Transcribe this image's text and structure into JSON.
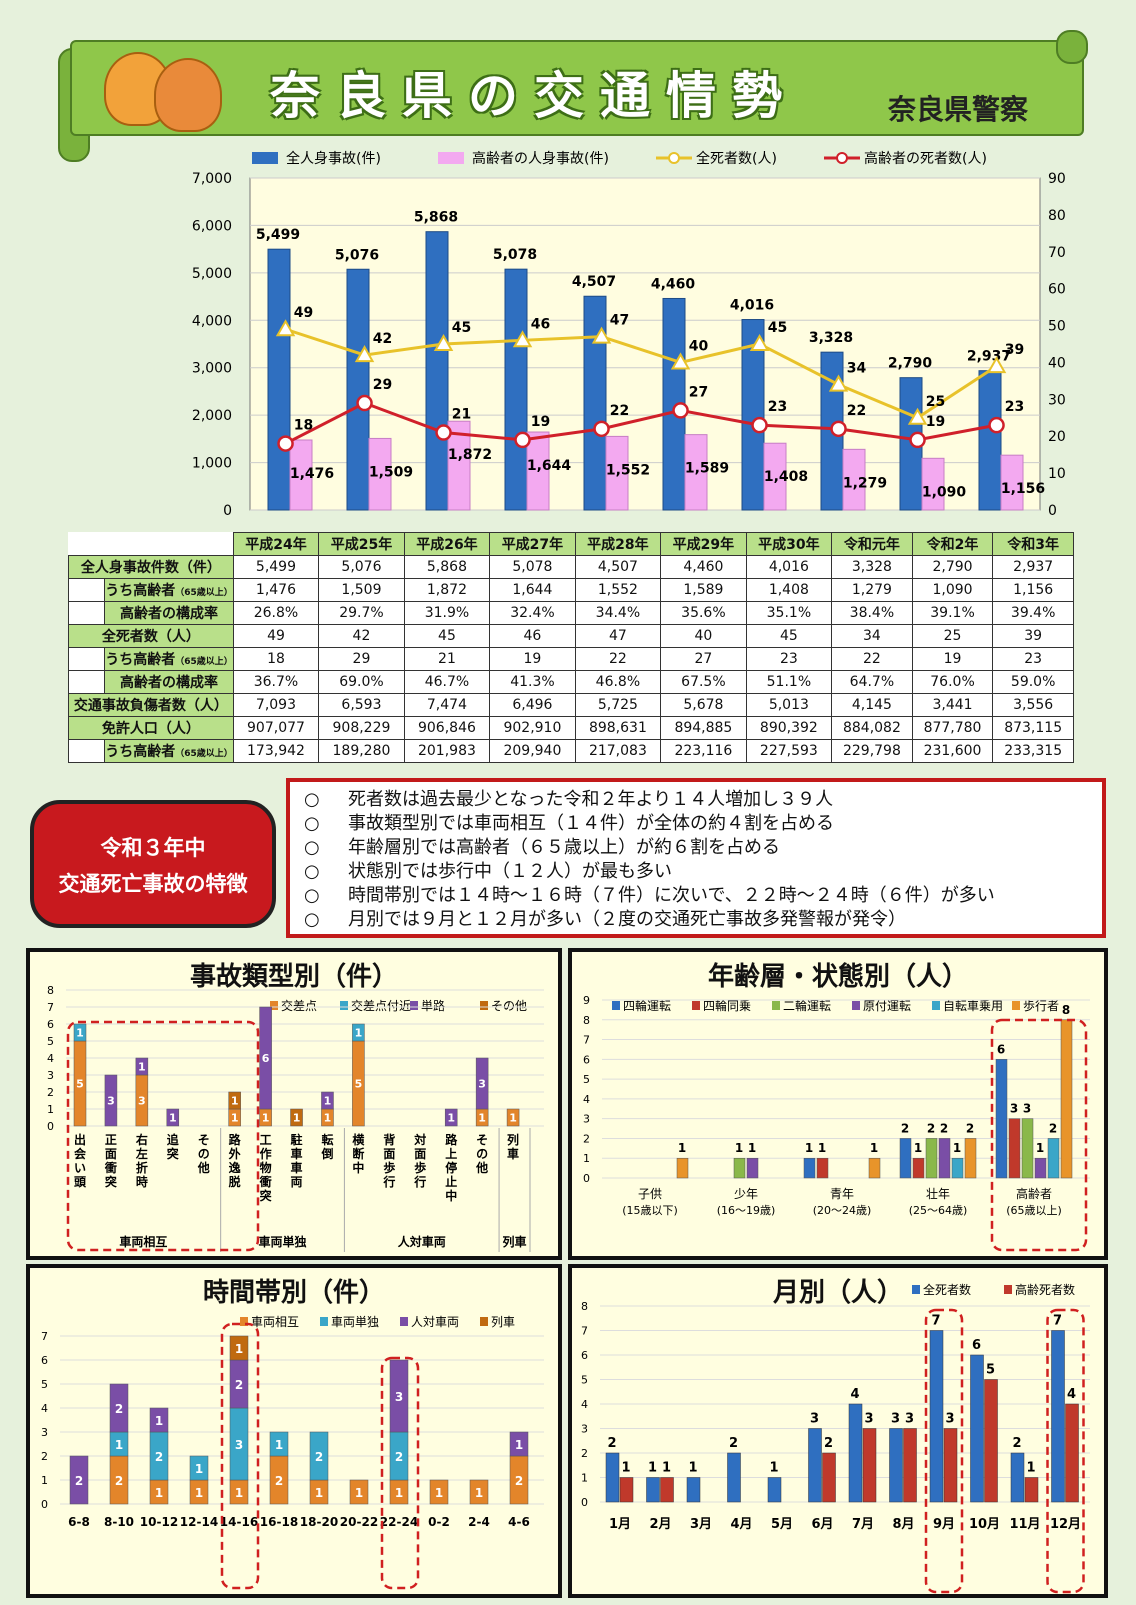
{
  "header": {
    "title": "奈良県の交通情勢",
    "org": "奈良県警察"
  },
  "main_chart": {
    "years": [
      "平成24年",
      "平成25年",
      "平成26年",
      "平成27年",
      "平成28年",
      "平成29年",
      "平成30年",
      "令和元年",
      "令和2年",
      "令和3年"
    ],
    "legend": [
      "全人身事故(件)",
      "高齢者の人身事故(件)",
      "全死者数(人)",
      "高齢者の死者数(人)"
    ],
    "left_ticks": [
      "0",
      "1,000",
      "2,000",
      "3,000",
      "4,000",
      "5,000",
      "6,000",
      "7,000"
    ],
    "right_ticks": [
      "0",
      "10",
      "20",
      "30",
      "40",
      "50",
      "60",
      "70",
      "80",
      "90"
    ],
    "colors": {
      "all_bar": "#2f6fc0",
      "elder_bar": "#f3a9f0",
      "deaths_line": "#e8c22a",
      "elder_deaths_line": "#d0202a"
    }
  },
  "chart_data": [
    {
      "type": "bar",
      "name": "main",
      "categories": [
        "平成24年",
        "平成25年",
        "平成26年",
        "平成27年",
        "平成28年",
        "平成29年",
        "平成30年",
        "令和元年",
        "令和2年",
        "令和3年"
      ],
      "series": [
        {
          "name": "全人身事故(件)",
          "axis": "left",
          "values": [
            5499,
            5076,
            5868,
            5078,
            4507,
            4460,
            4016,
            3328,
            2790,
            2937
          ],
          "labels": [
            "5,499",
            "5,076",
            "5,868",
            "5,078",
            "4,507",
            "4,460",
            "4,016",
            "3,328",
            "2,790",
            "2,937"
          ]
        },
        {
          "name": "高齢者の人身事故(件)",
          "axis": "left",
          "values": [
            1476,
            1509,
            1872,
            1644,
            1552,
            1589,
            1408,
            1279,
            1090,
            1156
          ],
          "labels": [
            "1,476",
            "1,509",
            "1,872",
            "1,644",
            "1,552",
            "1,589",
            "1,408",
            "1,279",
            "1,090",
            "1,156"
          ]
        },
        {
          "name": "全死者数(人)",
          "axis": "right",
          "line": true,
          "values": [
            49,
            42,
            45,
            46,
            47,
            40,
            45,
            34,
            25,
            39
          ]
        },
        {
          "name": "高齢者の死者数(人)",
          "axis": "right",
          "line": true,
          "values": [
            18,
            29,
            21,
            19,
            22,
            27,
            23,
            22,
            19,
            23
          ]
        }
      ],
      "ylim": [
        0,
        7000
      ],
      "y2lim": [
        0,
        90
      ]
    },
    {
      "type": "bar",
      "name": "accident_type",
      "title": "事故類型別（件）",
      "legend": [
        "交差点",
        "交差点付近",
        "単路",
        "その他"
      ],
      "colors": [
        "#e3852a",
        "#3aa6c8",
        "#7a4ea6",
        "#c06a10"
      ],
      "categories": [
        "出会い頭",
        "正面衝突",
        "右左折時",
        "追突",
        "その他",
        "路外逸脱",
        "工作物衝突",
        "駐車車両",
        "転倒",
        "横断中",
        "背面歩行",
        "対面歩行",
        "路上停止中",
        "その他",
        "列車"
      ],
      "groups": [
        {
          "label": "車両相互",
          "span": 5
        },
        {
          "label": "車両単独",
          "span": 4
        },
        {
          "label": "人対車両",
          "span": 5
        },
        {
          "label": "列車",
          "span": 1
        }
      ],
      "stacks": [
        [
          5,
          1,
          0,
          0
        ],
        [
          0,
          0,
          3,
          0
        ],
        [
          3,
          0,
          1,
          0
        ],
        [
          0,
          0,
          1,
          0
        ],
        [
          0,
          0,
          0,
          0
        ],
        [
          1,
          0,
          0,
          1
        ],
        [
          1,
          0,
          6,
          0
        ],
        [
          0,
          0,
          0,
          1
        ],
        [
          1,
          0,
          1,
          0
        ],
        [
          5,
          1,
          0,
          0
        ],
        [
          0,
          0,
          0,
          0
        ],
        [
          0,
          0,
          0,
          0
        ],
        [
          0,
          0,
          1,
          0
        ],
        [
          1,
          0,
          3,
          0
        ],
        [
          1,
          0,
          0,
          0
        ]
      ],
      "ylim": [
        0,
        8
      ]
    },
    {
      "type": "bar",
      "name": "age_state",
      "title": "年齢層・状態別（人）",
      "legend": [
        "四輪運転",
        "四輪同乗",
        "二輪運転",
        "原付運転",
        "自転車乗用",
        "歩行者"
      ],
      "colors": [
        "#2f6fc0",
        "#c0392b",
        "#8ab84a",
        "#7a4ea6",
        "#3aa6c8",
        "#e8942a"
      ],
      "categories": [
        "子供",
        "少年",
        "青年",
        "壮年",
        "高齢者"
      ],
      "sublabels": [
        "(15歳以下)",
        "(16～19歳)",
        "(20～24歳)",
        "(25～64歳)",
        "(65歳以上)"
      ],
      "values": [
        [
          0,
          0,
          0,
          0,
          0,
          1
        ],
        [
          0,
          0,
          1,
          1,
          0,
          0
        ],
        [
          1,
          1,
          0,
          0,
          0,
          0
        ],
        [
          0,
          0,
          0,
          0,
          0,
          1
        ],
        [
          2,
          1,
          2,
          2,
          1,
          2
        ],
        [
          6,
          3,
          3,
          1,
          2,
          8
        ]
      ],
      "note": "values rows follow: 子供, 少年, 青年, 青年(extra), 壮年, 高齢者",
      "ylim": [
        0,
        9
      ]
    },
    {
      "type": "bar",
      "name": "time_slot",
      "title": "時間帯別（件）",
      "legend": [
        "車両相互",
        "車両単独",
        "人対車両",
        "列車"
      ],
      "colors": [
        "#e3852a",
        "#3aa6c8",
        "#7a4ea6",
        "#c06a10"
      ],
      "categories": [
        "6-8",
        "8-10",
        "10-12",
        "12-14",
        "14-16",
        "16-18",
        "18-20",
        "20-22",
        "22-24",
        "0-2",
        "2-4",
        "4-6"
      ],
      "stacks": [
        [
          0,
          0,
          2,
          0
        ],
        [
          2,
          1,
          2,
          0
        ],
        [
          1,
          2,
          1,
          0
        ],
        [
          1,
          1,
          0,
          0
        ],
        [
          1,
          3,
          2,
          1
        ],
        [
          2,
          1,
          0,
          0
        ],
        [
          1,
          2,
          0,
          0
        ],
        [
          1,
          0,
          0,
          0
        ],
        [
          1,
          2,
          3,
          0
        ],
        [
          1,
          0,
          0,
          0
        ],
        [
          1,
          0,
          0,
          0
        ],
        [
          2,
          0,
          1,
          0
        ]
      ],
      "ylim": [
        0,
        7
      ]
    },
    {
      "type": "bar",
      "name": "monthly",
      "title": "月別（人）",
      "legend": [
        "全死者数",
        "高齢死者数"
      ],
      "colors": [
        "#2f6fc0",
        "#c0392b"
      ],
      "categories": [
        "1月",
        "2月",
        "3月",
        "4月",
        "5月",
        "6月",
        "7月",
        "8月",
        "9月",
        "10月",
        "11月",
        "12月"
      ],
      "series": [
        {
          "name": "全死者数",
          "values": [
            2,
            1,
            1,
            2,
            1,
            3,
            4,
            3,
            7,
            6,
            2,
            7
          ]
        },
        {
          "name": "高齢死者数",
          "values": [
            1,
            1,
            0,
            0,
            0,
            2,
            3,
            3,
            3,
            5,
            1,
            4
          ]
        }
      ],
      "ylim": [
        0,
        8
      ]
    }
  ],
  "table": {
    "rows": [
      {
        "label": "全人身事故件数（件）",
        "indent": false,
        "cells": [
          "5,499",
          "5,076",
          "5,868",
          "5,078",
          "4,507",
          "4,460",
          "4,016",
          "3,328",
          "2,790",
          "2,937"
        ]
      },
      {
        "label": "うち高齢者",
        "small": "（65歳以上）",
        "indent": true,
        "cells": [
          "1,476",
          "1,509",
          "1,872",
          "1,644",
          "1,552",
          "1,589",
          "1,408",
          "1,279",
          "1,090",
          "1,156"
        ]
      },
      {
        "label": "高齢者の構成率",
        "indent": true,
        "cells": [
          "26.8%",
          "29.7%",
          "31.9%",
          "32.4%",
          "34.4%",
          "35.6%",
          "35.1%",
          "38.4%",
          "39.1%",
          "39.4%"
        ]
      },
      {
        "label": "全死者数（人）",
        "indent": false,
        "cells": [
          "49",
          "42",
          "45",
          "46",
          "47",
          "40",
          "45",
          "34",
          "25",
          "39"
        ]
      },
      {
        "label": "うち高齢者",
        "small": "（65歳以上）",
        "indent": true,
        "cells": [
          "18",
          "29",
          "21",
          "19",
          "22",
          "27",
          "23",
          "22",
          "19",
          "23"
        ]
      },
      {
        "label": "高齢者の構成率",
        "indent": true,
        "cells": [
          "36.7%",
          "69.0%",
          "46.7%",
          "41.3%",
          "46.8%",
          "67.5%",
          "51.1%",
          "64.7%",
          "76.0%",
          "59.0%"
        ]
      },
      {
        "label": "交通事故負傷者数（人）",
        "indent": false,
        "cells": [
          "7,093",
          "6,593",
          "7,474",
          "6,496",
          "5,725",
          "5,678",
          "5,013",
          "4,145",
          "3,441",
          "3,556"
        ]
      },
      {
        "label": "免許人口（人）",
        "indent": false,
        "cells": [
          "907,077",
          "908,229",
          "906,846",
          "902,910",
          "898,631",
          "894,885",
          "890,392",
          "884,082",
          "877,780",
          "873,115"
        ]
      },
      {
        "label": "うち高齢者",
        "small": "（65歳以上）",
        "indent": true,
        "cells": [
          "173,942",
          "189,280",
          "201,983",
          "209,940",
          "217,083",
          "223,116",
          "227,593",
          "229,798",
          "231,600",
          "233,315"
        ]
      }
    ]
  },
  "features": {
    "badge_line1": "令和３年中",
    "badge_line2": "交通死亡事故の特徴",
    "bullet": "○",
    "lines": [
      "死者数は過去最少となった令和２年より１４人増加し３９人",
      "事故類型別では車両相互（１４件）が全体の約４割を占める",
      "年齢層別では高齢者（６５歳以上）が約６割を占める",
      "状態別では歩行中（１２人）が最も多い",
      "時間帯別では１４時～１６時（７件）に次いで、２２時～２４時（６件）が多い",
      "月別では９月と１２月が多い（２度の交通死亡事故多発警報が発令）"
    ]
  },
  "panels": {
    "p1": "事故類型別（件）",
    "p2": "年齢層・状態別（人）",
    "p3": "時間帯別（件）",
    "p4": "月別（人）"
  }
}
